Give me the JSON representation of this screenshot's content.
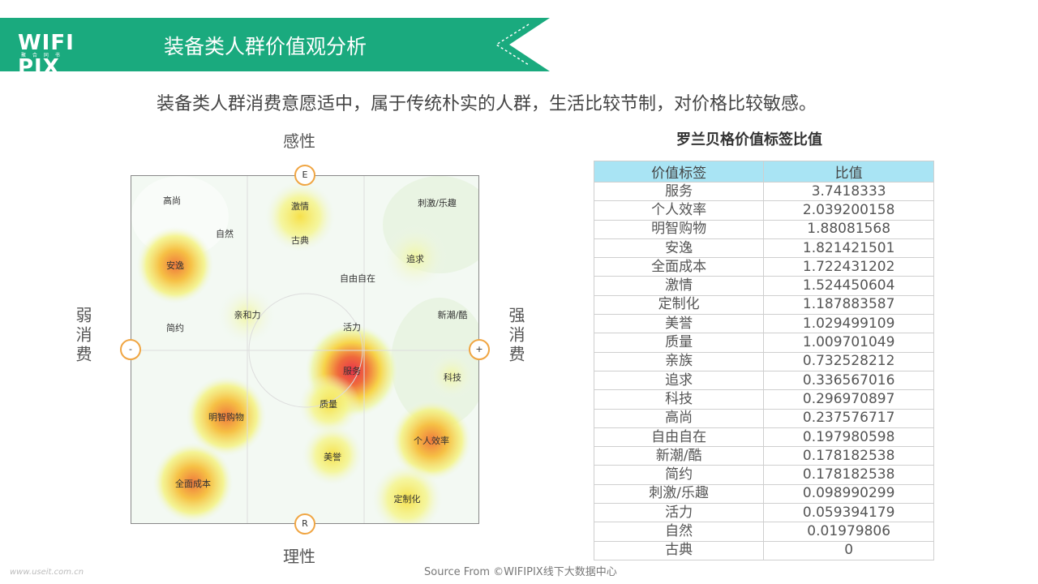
{
  "header": {
    "logo_text": "WIFI PIX",
    "logo_subtext": "聚 合 同 书",
    "title": "装备类人群价值观分析",
    "banner_color": "#1aaa7e"
  },
  "subtitle": "装备类人群消费意愿适中，属于传统朴实的人群，生活比较节制，对价格比较敏感。",
  "quadrant": {
    "top_label": "感性",
    "bottom_label": "理性",
    "left_label": "弱消费",
    "right_label": "强消费",
    "top_marker": "E",
    "bottom_marker": "R",
    "left_marker": "-",
    "right_marker": "+",
    "words": [
      {
        "id": "gaoshang",
        "text": "高尚"
      },
      {
        "id": "jiqing",
        "text": "激情"
      },
      {
        "id": "ciji",
        "text": "刺激/乐趣"
      },
      {
        "id": "ziran",
        "text": "自然"
      },
      {
        "id": "gudian",
        "text": "古典"
      },
      {
        "id": "anyi",
        "text": "安逸"
      },
      {
        "id": "zhuiqiu",
        "text": "追求"
      },
      {
        "id": "ziyou",
        "text": "自由自在"
      },
      {
        "id": "qinhe",
        "text": "亲和力"
      },
      {
        "id": "xinchao",
        "text": "新潮/酷"
      },
      {
        "id": "jianyue",
        "text": "简约"
      },
      {
        "id": "huoli",
        "text": "活力"
      },
      {
        "id": "fuwu",
        "text": "服务"
      },
      {
        "id": "keji",
        "text": "科技"
      },
      {
        "id": "zhiliang",
        "text": "质量"
      },
      {
        "id": "mingzhi",
        "text": "明智购物"
      },
      {
        "id": "geren",
        "text": "个人效率"
      },
      {
        "id": "meiyu",
        "text": "美誉"
      },
      {
        "id": "quanmian",
        "text": "全面成本"
      },
      {
        "id": "dingzhi",
        "text": "定制化"
      }
    ]
  },
  "table": {
    "title": "罗兰贝格价值标签比值",
    "headers": [
      "价值标签",
      "比值"
    ],
    "header_color": "#a9e4f4",
    "rows": [
      [
        "服务",
        "3.7418333"
      ],
      [
        "个人效率",
        "2.039200158"
      ],
      [
        "明智购物",
        "1.88081568"
      ],
      [
        "安逸",
        "1.821421501"
      ],
      [
        "全面成本",
        "1.722431202"
      ],
      [
        "激情",
        "1.524450604"
      ],
      [
        "定制化",
        "1.187883587"
      ],
      [
        "美誉",
        "1.029499109"
      ],
      [
        "质量",
        "1.009701049"
      ],
      [
        "亲族",
        "0.732528212"
      ],
      [
        "追求",
        "0.336567016"
      ],
      [
        "科技",
        "0.296970897"
      ],
      [
        "高尚",
        "0.237576717"
      ],
      [
        "自由自在",
        "0.197980598"
      ],
      [
        "新潮/酷",
        "0.178182538"
      ],
      [
        "简约",
        "0.178182538"
      ],
      [
        "刺激/乐趣",
        "0.098990299"
      ],
      [
        "活力",
        "0.059394179"
      ],
      [
        "自然",
        "0.01979806"
      ],
      [
        "古典",
        "0"
      ]
    ]
  },
  "source": "Source From ©WIFIPIX线下大数据中心",
  "watermark": "www.useit.com.cn"
}
